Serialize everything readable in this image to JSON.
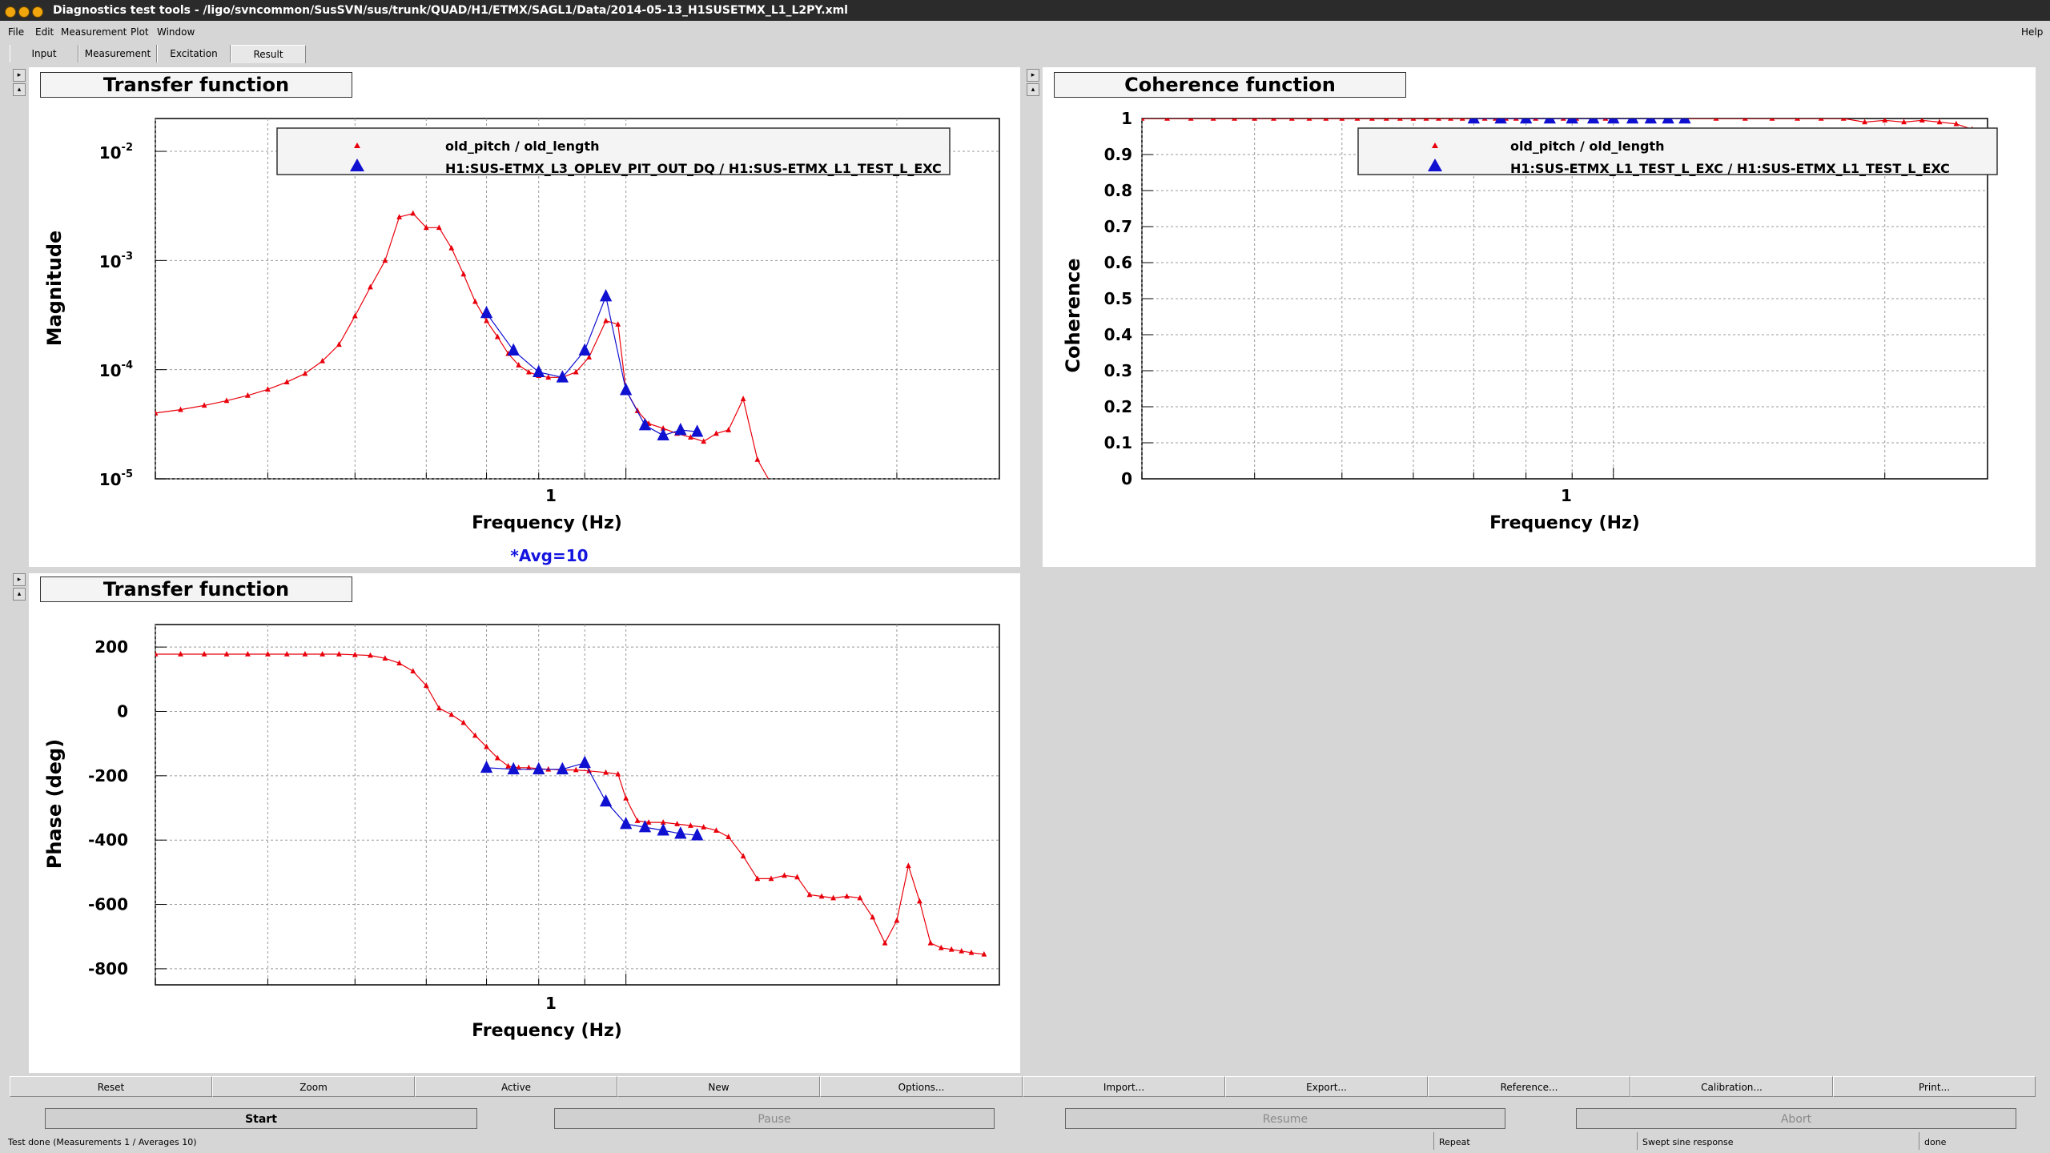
{
  "window": {
    "title": "Diagnostics test tools - /ligo/svncommon/SusSVN/sus/trunk/QUAD/H1/ETMX/SAGL1/Data/2014-05-13_H1SUSETMX_L1_L2PY.xml"
  },
  "menu": [
    "File",
    "Edit",
    "Measurement",
    "Plot",
    "Window",
    "Help"
  ],
  "tabs": [
    "Input",
    "Measurement",
    "Excitation",
    "Result"
  ],
  "active_tab": "Result",
  "plots": {
    "tf_mag": {
      "panel_title": "Transfer function",
      "ylabel": "Magnitude",
      "xlabel": "Frequency (Hz)",
      "x_tick": "1",
      "y_ticks": [
        "10",
        "10",
        "10",
        "10"
      ],
      "y_exps": [
        "-2",
        "-3",
        "-4",
        "-5"
      ],
      "legend": [
        "old_pitch / old_length",
        "H1:SUS-ETMX_L3_OPLEV_PIT_OUT_DQ / H1:SUS-ETMX_L1_TEST_L_EXC"
      ],
      "avg_note": "*Avg=10"
    },
    "coh": {
      "panel_title": "Coherence function",
      "ylabel": "Coherence",
      "xlabel": "Frequency (Hz)",
      "x_tick": "1",
      "y_ticks": [
        "1",
        "0.9",
        "0.8",
        "0.7",
        "0.6",
        "0.5",
        "0.4",
        "0.3",
        "0.2",
        "0.1",
        "0"
      ],
      "legend": [
        "old_pitch / old_length",
        "H1:SUS-ETMX_L1_TEST_L_EXC / H1:SUS-ETMX_L1_TEST_L_EXC"
      ]
    },
    "tf_phase": {
      "panel_title": "Transfer function",
      "ylabel": "Phase (deg)",
      "xlabel": "Frequency (Hz)",
      "x_tick": "1",
      "y_ticks": [
        "200",
        "0",
        "-200",
        "-400",
        "-600",
        "-800"
      ]
    }
  },
  "chart_data": [
    {
      "type": "line",
      "name": "magnitude",
      "xscale": "log",
      "yscale": "log",
      "xlim": [
        0.3,
        2.6
      ],
      "ylim": [
        1e-05,
        0.02
      ],
      "grid": true,
      "legend_position": "top-right",
      "series": [
        {
          "name": "old_pitch / old_length",
          "color": "#e8000b",
          "x": [
            0.3,
            0.32,
            0.34,
            0.36,
            0.38,
            0.4,
            0.42,
            0.44,
            0.46,
            0.48,
            0.5,
            0.52,
            0.54,
            0.56,
            0.58,
            0.6,
            0.62,
            0.64,
            0.66,
            0.68,
            0.7,
            0.72,
            0.74,
            0.76,
            0.78,
            0.8,
            0.82,
            0.85,
            0.88,
            0.91,
            0.95,
            0.98,
            1.0,
            1.03,
            1.06,
            1.1,
            1.14,
            1.18,
            1.22,
            1.26,
            1.3,
            1.35,
            1.4,
            1.45
          ],
          "y": [
            4e-05,
            4.3e-05,
            4.7e-05,
            5.2e-05,
            5.8e-05,
            6.6e-05,
            7.7e-05,
            9.2e-05,
            0.00012,
            0.00017,
            0.00031,
            0.00057,
            0.001,
            0.0025,
            0.0027,
            0.002,
            0.002,
            0.0013,
            0.00075,
            0.00042,
            0.00028,
            0.0002,
            0.00014,
            0.00011,
            9.5e-05,
            8.8e-05,
            8.5e-05,
            8.5e-05,
            9.5e-05,
            0.00013,
            0.00028,
            0.00026,
            6.5e-05,
            4.2e-05,
            3.2e-05,
            2.9e-05,
            2.6e-05,
            2.4e-05,
            2.2e-05,
            2.6e-05,
            2.8e-05,
            5.4e-05,
            1.5e-05,
            9e-06
          ]
        },
        {
          "name": "H1:SUS-ETMX_L3_OPLEV_PIT_OUT_DQ / H1:SUS-ETMX_L1_TEST_L_EXC",
          "color": "#1010d0",
          "x": [
            0.7,
            0.75,
            0.8,
            0.85,
            0.9,
            0.95,
            1.0,
            1.05,
            1.1,
            1.15,
            1.2
          ],
          "y": [
            0.00033,
            0.00015,
            9.5e-05,
            8.5e-05,
            0.00015,
            0.00047,
            6.5e-05,
            3.1e-05,
            2.5e-05,
            2.8e-05,
            2.7e-05
          ]
        }
      ]
    },
    {
      "type": "line",
      "name": "coherence",
      "xscale": "log",
      "xlim": [
        0.3,
        2.6
      ],
      "ylim": [
        0,
        1
      ],
      "grid": true,
      "legend_position": "top-right",
      "series": [
        {
          "name": "old_pitch / old_length",
          "color": "#e8000b",
          "x": [
            0.3,
            0.32,
            0.34,
            0.36,
            0.38,
            0.4,
            0.42,
            0.44,
            0.46,
            0.48,
            0.5,
            0.52,
            0.54,
            0.56,
            0.58,
            0.6,
            0.62,
            0.64,
            0.66,
            0.68,
            0.7,
            0.72,
            0.74,
            0.76,
            0.78,
            0.8,
            0.82,
            0.85,
            0.88,
            0.91,
            0.95,
            0.98,
            1.0,
            1.05,
            1.1,
            1.15,
            1.2,
            1.3,
            1.4,
            1.5,
            1.6,
            1.7,
            1.8,
            1.9,
            2.0,
            2.1,
            2.2,
            2.3,
            2.4,
            2.5
          ],
          "y": [
            1,
            1,
            1,
            1,
            1,
            1,
            1,
            1,
            1,
            1,
            1,
            1,
            1,
            1,
            1,
            1,
            1,
            1,
            1,
            1,
            1,
            1,
            1,
            1,
            1,
            1,
            1,
            1,
            1,
            1,
            1,
            1,
            1,
            1,
            1,
            1,
            1,
            1,
            1,
            1,
            1,
            1,
            1,
            0.99,
            0.995,
            0.99,
            0.995,
            0.99,
            0.985,
            0.97
          ]
        },
        {
          "name": "H1:SUS-ETMX_L1_TEST_L_EXC / H1:SUS-ETMX_L1_TEST_L_EXC",
          "color": "#1010d0",
          "x": [
            0.7,
            0.75,
            0.8,
            0.85,
            0.9,
            0.95,
            1.0,
            1.05,
            1.1,
            1.15,
            1.2
          ],
          "y": [
            1,
            1,
            1,
            1,
            1,
            1,
            1,
            1,
            1,
            1,
            1
          ]
        }
      ]
    },
    {
      "type": "line",
      "name": "phase",
      "xscale": "log",
      "xlim": [
        0.3,
        2.6
      ],
      "ylim": [
        -850,
        270
      ],
      "grid": true,
      "series": [
        {
          "name": "old_pitch / old_length",
          "color": "#e8000b",
          "x": [
            0.3,
            0.32,
            0.34,
            0.36,
            0.38,
            0.4,
            0.42,
            0.44,
            0.46,
            0.48,
            0.5,
            0.52,
            0.54,
            0.56,
            0.58,
            0.6,
            0.62,
            0.64,
            0.66,
            0.68,
            0.7,
            0.72,
            0.74,
            0.76,
            0.78,
            0.8,
            0.82,
            0.85,
            0.88,
            0.91,
            0.95,
            0.98,
            1.0,
            1.03,
            1.06,
            1.1,
            1.14,
            1.18,
            1.22,
            1.26,
            1.3,
            1.35,
            1.4,
            1.45,
            1.5,
            1.55,
            1.6,
            1.65,
            1.7,
            1.76,
            1.82,
            1.88,
            1.94,
            2.0,
            2.06,
            2.12,
            2.18,
            2.24,
            2.3,
            2.36,
            2.42,
            2.5
          ],
          "y": [
            178,
            178,
            178,
            178,
            178,
            178,
            178,
            178,
            178,
            178,
            176,
            174,
            165,
            150,
            125,
            80,
            10,
            -10,
            -35,
            -75,
            -110,
            -145,
            -170,
            -175,
            -175,
            -178,
            -180,
            -182,
            -182,
            -185,
            -190,
            -195,
            -270,
            -340,
            -345,
            -345,
            -350,
            -355,
            -360,
            -370,
            -390,
            -450,
            -520,
            -520,
            -510,
            -515,
            -570,
            -575,
            -580,
            -575,
            -580,
            -640,
            -720,
            -650,
            -480,
            -590,
            -720,
            -735,
            -740,
            -745,
            -750,
            -755
          ]
        },
        {
          "name": "H1:SUS-ETMX_L3_OPLEV_PIT_OUT_DQ / H1:SUS-ETMX_L1_TEST_L_EXC",
          "color": "#1010d0",
          "x": [
            0.7,
            0.75,
            0.8,
            0.85,
            0.9,
            0.95,
            1.0,
            1.05,
            1.1,
            1.15,
            1.2
          ],
          "y": [
            -175,
            -180,
            -180,
            -180,
            -160,
            -280,
            -350,
            -360,
            -370,
            -380,
            -385
          ]
        }
      ]
    }
  ],
  "buttons_row1": [
    "Reset",
    "Zoom",
    "Active",
    "New",
    "Options...",
    "Import...",
    "Export...",
    "Reference...",
    "Calibration...",
    "Print..."
  ],
  "buttons_row2": [
    "Start",
    "Pause",
    "Resume",
    "Abort"
  ],
  "status": {
    "main": "Test done (Measurements 1 / Averages 10)",
    "repeat": "Repeat",
    "type": "Swept sine response",
    "state": "done"
  }
}
